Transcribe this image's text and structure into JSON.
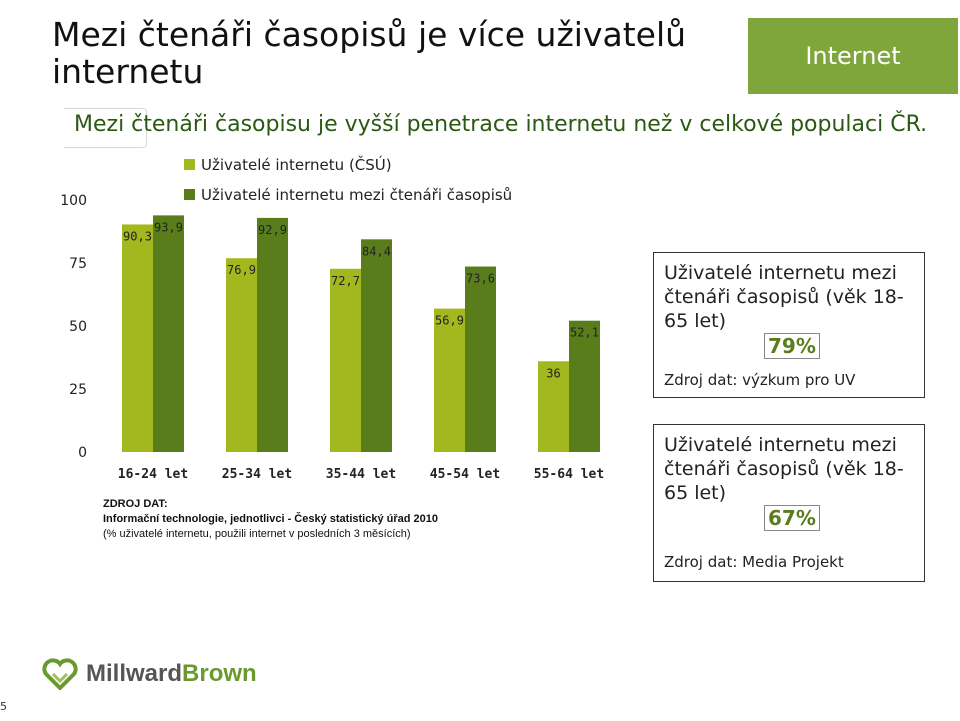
{
  "header": {
    "title": "Mezi čtenáři časopisů je více uživatelů internetu",
    "tag": "Internet",
    "subtitle": "Mezi čtenáři časopisu je vyšší penetrace internetu než v celkové populaci ČR."
  },
  "chart_data": {
    "type": "bar",
    "categories": [
      "16-24 let",
      "25-34 let",
      "35-44 let",
      "45-54 let",
      "55-64 let"
    ],
    "series": [
      {
        "name": "Uživatelé internetu (ČSÚ)",
        "values": [
          90.3,
          76.9,
          72.7,
          56.9,
          36
        ],
        "labels": [
          "90,3",
          "76,9",
          "72,7",
          "56,9",
          "36"
        ]
      },
      {
        "name": "Uživatelé internetu mezi čtenáři časopisů",
        "values": [
          93.9,
          92.9,
          84.4,
          73.6,
          52.1
        ],
        "labels": [
          "93,9",
          "92,9",
          "84,4",
          "73,6",
          "52,1"
        ]
      }
    ],
    "yticks": [
      0,
      25,
      50,
      75,
      100
    ],
    "ylim": [
      0,
      100
    ],
    "colors": [
      "#a3b81e",
      "#5a7d1c"
    ],
    "legend": "top"
  },
  "source": {
    "line1": "ZDROJ DAT:",
    "line2": "Informační technologie, jednotlivci - Český statistický úřad 2010",
    "line3": "(% uživatelé internetu, použili internet v posledních 3 měsících)"
  },
  "stats": [
    {
      "lead": "Uživatelé internetu mezi čtenáři časopisů (věk 18-65 let)",
      "value": "79%",
      "source": "Zdroj dat: výzkum pro UV"
    },
    {
      "lead": "Uživatelé internetu mezi čtenáři časopisů (věk 18-65 let)",
      "value": "67%",
      "source": "Zdroj dat: Media Projekt"
    }
  ],
  "footer": {
    "logo_part1": "Millward",
    "logo_part2": "Brown",
    "page_number": "5"
  }
}
